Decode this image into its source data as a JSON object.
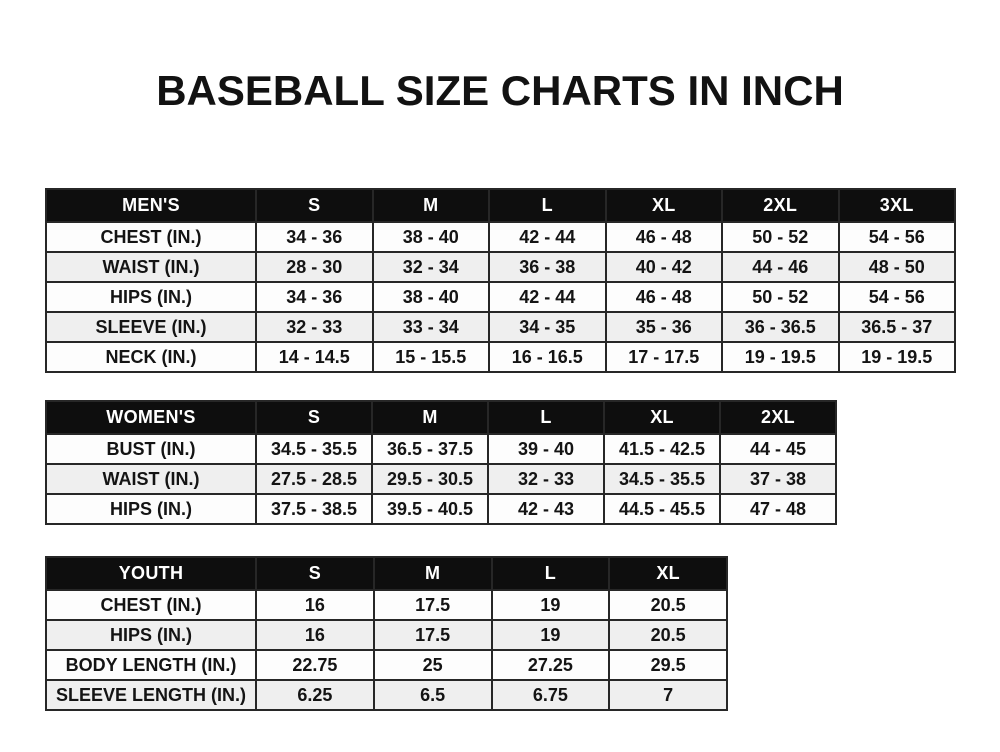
{
  "page": {
    "title": "BASEBALL SIZE CHARTS IN INCH"
  },
  "colors": {
    "header_bg": "#0e0e0e",
    "header_text": "#ffffff",
    "row_alt_bg": "#efefef",
    "border": "#272727",
    "text": "#141414",
    "background": "#ffffff"
  },
  "chart_data": [
    {
      "type": "table",
      "title": "MEN'S",
      "columns": [
        "S",
        "M",
        "L",
        "XL",
        "2XL",
        "3XL"
      ],
      "rows": [
        {
          "label": "CHEST (IN.)",
          "values": [
            "34 - 36",
            "38 - 40",
            "42 - 44",
            "46 - 48",
            "50 - 52",
            "54 - 56"
          ]
        },
        {
          "label": "WAIST (IN.)",
          "values": [
            "28 - 30",
            "32 - 34",
            "36 - 38",
            "40 - 42",
            "44 - 46",
            "48 - 50"
          ]
        },
        {
          "label": "HIPS (IN.)",
          "values": [
            "34 - 36",
            "38 - 40",
            "42 - 44",
            "46 - 48",
            "50 - 52",
            "54 - 56"
          ]
        },
        {
          "label": "SLEEVE (IN.)",
          "values": [
            "32 - 33",
            "33 - 34",
            "34 - 35",
            "35 - 36",
            "36 - 36.5",
            "36.5 - 37"
          ]
        },
        {
          "label": "NECK (IN.)",
          "values": [
            "14 - 14.5",
            "15 - 15.5",
            "16 - 16.5",
            "17 - 17.5",
            "19 - 19.5",
            "19 - 19.5"
          ]
        }
      ]
    },
    {
      "type": "table",
      "title": "WOMEN'S",
      "columns": [
        "S",
        "M",
        "L",
        "XL",
        "2XL"
      ],
      "rows": [
        {
          "label": "BUST (IN.)",
          "values": [
            "34.5 - 35.5",
            "36.5 - 37.5",
            "39 - 40",
            "41.5 - 42.5",
            "44 - 45"
          ]
        },
        {
          "label": "WAIST (IN.)",
          "values": [
            "27.5 - 28.5",
            "29.5 - 30.5",
            "32 - 33",
            "34.5 - 35.5",
            "37 - 38"
          ]
        },
        {
          "label": "HIPS (IN.)",
          "values": [
            "37.5 - 38.5",
            "39.5 - 40.5",
            "42 - 43",
            "44.5 - 45.5",
            "47 - 48"
          ]
        }
      ]
    },
    {
      "type": "table",
      "title": "YOUTH",
      "columns": [
        "S",
        "M",
        "L",
        "XL"
      ],
      "rows": [
        {
          "label": "CHEST (IN.)",
          "values": [
            "16",
            "17.5",
            "19",
            "20.5"
          ]
        },
        {
          "label": "HIPS (IN.)",
          "values": [
            "16",
            "17.5",
            "19",
            "20.5"
          ]
        },
        {
          "label": "BODY LENGTH (IN.)",
          "values": [
            "22.75",
            "25",
            "27.25",
            "29.5"
          ]
        },
        {
          "label": "SLEEVE LENGTH (IN.)",
          "values": [
            "6.25",
            "6.5",
            "6.75",
            "7"
          ]
        }
      ]
    }
  ]
}
